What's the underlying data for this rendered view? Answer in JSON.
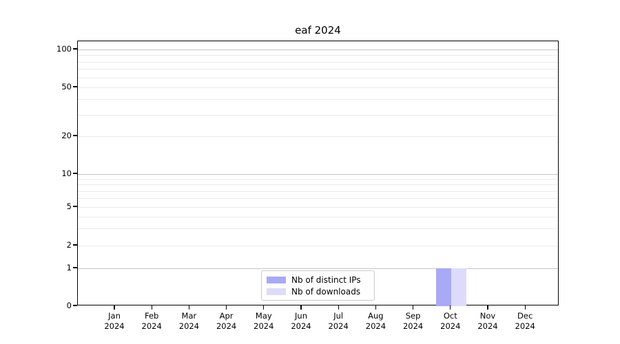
{
  "title": "eaf 2024",
  "chart_data": {
    "type": "bar",
    "title": "eaf 2024",
    "categories": [
      "Jan 2024",
      "Feb 2024",
      "Mar 2024",
      "Apr 2024",
      "May 2024",
      "Jun 2024",
      "Jul 2024",
      "Aug 2024",
      "Sep 2024",
      "Oct 2024",
      "Nov 2024",
      "Dec 2024"
    ],
    "categories_two_line": [
      {
        "month": "Jan",
        "year": "2024"
      },
      {
        "month": "Feb",
        "year": "2024"
      },
      {
        "month": "Mar",
        "year": "2024"
      },
      {
        "month": "Apr",
        "year": "2024"
      },
      {
        "month": "May",
        "year": "2024"
      },
      {
        "month": "Jun",
        "year": "2024"
      },
      {
        "month": "Jul",
        "year": "2024"
      },
      {
        "month": "Aug",
        "year": "2024"
      },
      {
        "month": "Sep",
        "year": "2024"
      },
      {
        "month": "Oct",
        "year": "2024"
      },
      {
        "month": "Nov",
        "year": "2024"
      },
      {
        "month": "Dec",
        "year": "2024"
      }
    ],
    "series": [
      {
        "name": "Nb of distinct IPs",
        "color": "#a9a9f5",
        "values": [
          0,
          0,
          0,
          0,
          0,
          0,
          0,
          0,
          0,
          1,
          0,
          0
        ]
      },
      {
        "name": "Nb of downloads",
        "color": "#dcdcfa",
        "values": [
          0,
          0,
          0,
          0,
          0,
          0,
          0,
          0,
          0,
          1,
          0,
          0
        ]
      }
    ],
    "xlabel": "",
    "ylabel": "",
    "yscale": "symlog (linear 0-1, logarithmic 1-100)",
    "ylim": [
      0,
      110
    ],
    "y_tick_labels": [
      "100",
      "50",
      "20",
      "10",
      "5",
      "2",
      "1",
      "0"
    ],
    "y_tick_values": [
      100,
      50,
      20,
      10,
      5,
      2,
      1,
      0
    ],
    "grid": "horizontal only",
    "gridlines": {
      "major_at": [
        1,
        10,
        100
      ],
      "minor_at": [
        2,
        3,
        4,
        5,
        6,
        7,
        8,
        9,
        20,
        30,
        40,
        50,
        60,
        70,
        80,
        90
      ]
    },
    "legend_position": "inside, lower center"
  },
  "legend": {
    "items": [
      {
        "label": "Nb of distinct IPs",
        "color": "#a9a9f5"
      },
      {
        "label": "Nb of downloads",
        "color": "#dcdcfa"
      }
    ]
  }
}
